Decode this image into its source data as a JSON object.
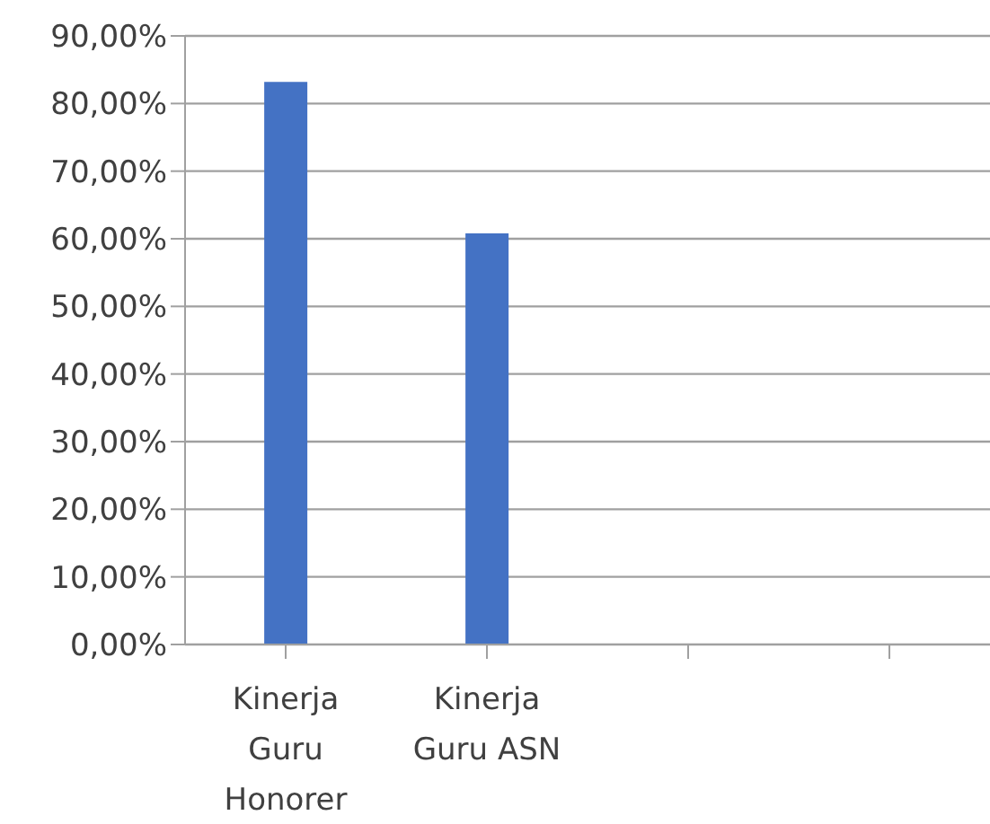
{
  "chart_data": {
    "type": "bar",
    "categories": [
      "Kinerja Guru Honorer",
      "Kinerja Guru ASN",
      null,
      null
    ],
    "values": [
      83.2,
      60.8,
      null,
      null
    ],
    "color": "#4472c4",
    "ylim": [
      0,
      90
    ],
    "yticks": [
      {
        "value": 0,
        "label": "0,00%"
      },
      {
        "value": 10,
        "label": "10,00%"
      },
      {
        "value": 20,
        "label": "20,00%"
      },
      {
        "value": 30,
        "label": "30,00%"
      },
      {
        "value": 40,
        "label": "40,00%"
      },
      {
        "value": 50,
        "label": "50,00%"
      },
      {
        "value": 60,
        "label": "60,00%"
      },
      {
        "value": 70,
        "label": "70,00%"
      },
      {
        "value": 80,
        "label": "80,00%"
      },
      {
        "value": 90,
        "label": "90,00%"
      }
    ],
    "grid": "y",
    "legend": false
  }
}
